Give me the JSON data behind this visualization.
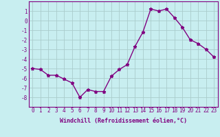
{
  "x": [
    0,
    1,
    2,
    3,
    4,
    5,
    6,
    7,
    8,
    9,
    10,
    11,
    12,
    13,
    14,
    15,
    16,
    17,
    18,
    19,
    20,
    21,
    22,
    23
  ],
  "y": [
    -5,
    -5.1,
    -5.7,
    -5.7,
    -6.1,
    -6.5,
    -8.0,
    -7.2,
    -7.4,
    -7.4,
    -5.8,
    -5.1,
    -4.6,
    -2.7,
    -1.2,
    1.2,
    1.0,
    1.2,
    0.3,
    -0.7,
    -2.0,
    -2.4,
    -3.0,
    -3.8
  ],
  "line_color": "#800080",
  "marker": "*",
  "marker_size": 3.5,
  "bg_color": "#c8eef0",
  "grid_color": "#aacccc",
  "xlabel": "Windchill (Refroidissement éolien,°C)",
  "xlabel_color": "#800080",
  "tick_color": "#800080",
  "ylim": [
    -9,
    2
  ],
  "yticks": [
    1,
    0,
    -1,
    -2,
    -3,
    -4,
    -5,
    -6,
    -7,
    -8
  ],
  "xticks": [
    0,
    1,
    2,
    3,
    4,
    5,
    6,
    7,
    8,
    9,
    10,
    11,
    12,
    13,
    14,
    15,
    16,
    17,
    18,
    19,
    20,
    21,
    22,
    23
  ],
  "spine_color": "#800080",
  "line_width": 1.0,
  "tick_fontsize": 5.5,
  "xlabel_fontsize": 6.0
}
